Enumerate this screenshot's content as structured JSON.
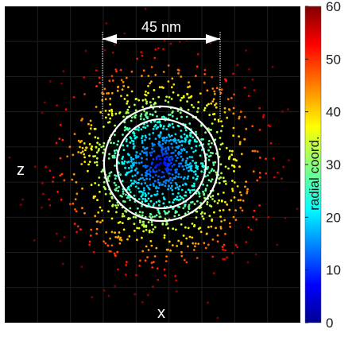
{
  "chart_data": {
    "type": "scatter",
    "title": "",
    "xlabel": "x",
    "ylabel": "z",
    "scale_bar_label": "45 nm",
    "background": "#000000",
    "grid": true,
    "colormap": "jet",
    "colorbar": {
      "label": "radial coord.",
      "ticks": [
        "0",
        "10",
        "20",
        "30",
        "40",
        "50",
        "60"
      ],
      "range": [
        0,
        60
      ],
      "placement": "right"
    },
    "points_note": "",
    "distribution": {
      "center_x": 0,
      "center_z": 0,
      "dense_core_radius_nm": 20,
      "outer_extent_radius_nm": 65
    },
    "rings_radial_coord": [
      21,
      27
    ],
    "rings_color": "#ffffff"
  }
}
